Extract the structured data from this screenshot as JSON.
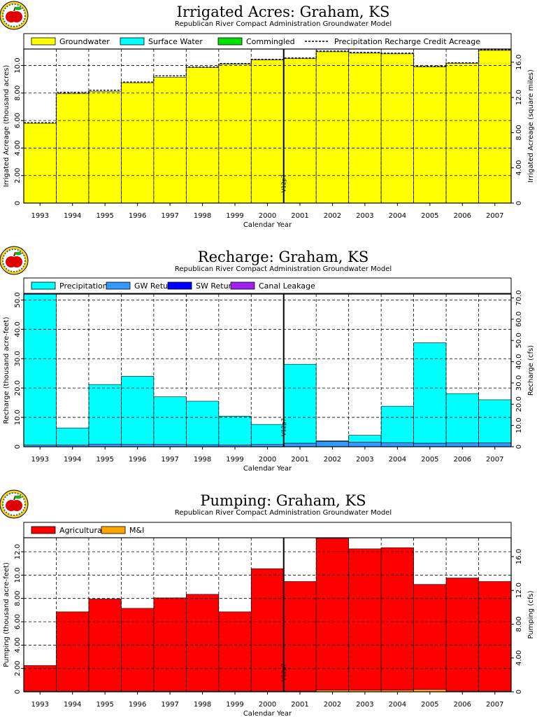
{
  "chart_data": [
    {
      "type": "bar",
      "title": "Irrigated  Acres:  Graham,  KS",
      "subtitle": "Republican  River  Compact  Administration  Groundwater  Model",
      "xlabel": "Calendar  Year",
      "ylabel": "Irrigated  Acreage  (thousand  acres)",
      "ylabel_right": "Irrigated  Acreage  (square  miles)",
      "categories": [
        "1993",
        "1994",
        "1995",
        "1996",
        "1997",
        "1998",
        "1999",
        "2000",
        "2001",
        "2002",
        "2003",
        "2004",
        "2005",
        "2006",
        "2007"
      ],
      "ylim": [
        0,
        11.2
      ],
      "yticks": [
        {
          "value": 2.0,
          "label": "2.00"
        },
        {
          "value": 4.0,
          "label": "4.00"
        },
        {
          "value": 6.0,
          "label": "6.00"
        },
        {
          "value": 8.0,
          "label": "8.00"
        },
        {
          "value": 10.0,
          "label": "10.0"
        }
      ],
      "right_ticks": [
        {
          "value": 0,
          "label": "0"
        },
        {
          "value": 2.56,
          "label": "4.00"
        },
        {
          "value": 5.12,
          "label": "8.00"
        },
        {
          "value": 7.68,
          "label": "12.0"
        },
        {
          "value": 10.24,
          "label": "16.0"
        }
      ],
      "series": [
        {
          "name": "Groundwater",
          "color": "#ffff00",
          "legend_kind": "box",
          "values": [
            5.8,
            7.95,
            8.1,
            8.75,
            9.15,
            9.85,
            10.1,
            10.4,
            10.5,
            11.0,
            10.9,
            10.85,
            9.9,
            10.15,
            11.1
          ]
        },
        {
          "name": "Surface  Water",
          "color": "#00ffff",
          "legend_kind": "box",
          "values": [
            0,
            0,
            0,
            0,
            0,
            0,
            0,
            0,
            0,
            0,
            0,
            0,
            0,
            0,
            0
          ]
        },
        {
          "name": "Commingled",
          "color": "#00e000",
          "legend_kind": "box",
          "values": [
            0,
            0,
            0,
            0,
            0,
            0,
            0,
            0,
            0,
            0,
            0,
            0,
            0,
            0,
            0
          ]
        }
      ],
      "reference_line": {
        "name": "Precipitation  Recharge  Credit  Acreage",
        "style": "dashed",
        "values": [
          5.85,
          8.05,
          8.2,
          8.8,
          9.25,
          9.9,
          10.15,
          10.45,
          10.55,
          11.05,
          10.95,
          10.9,
          9.95,
          10.2,
          11.15
        ]
      },
      "marker": {
        "label": "V12p7",
        "at_index": 8
      },
      "legend_position": "top",
      "grid": true
    },
    {
      "type": "bar",
      "title": "Recharge:  Graham,  KS",
      "subtitle": "Republican  River  Compact  Administration  Groundwater  Model",
      "xlabel": "Calendar  Year",
      "ylabel": "Recharge  (thousand  acre-feet)",
      "ylabel_right": "Recharge  (cfs)",
      "categories": [
        "1993",
        "1994",
        "1995",
        "1996",
        "1997",
        "1998",
        "1999",
        "2000",
        "2001",
        "2002",
        "2003",
        "2004",
        "2005",
        "2006",
        "2007"
      ],
      "ylim": [
        0,
        52
      ],
      "yticks": [
        {
          "value": 10,
          "label": "10.0"
        },
        {
          "value": 20,
          "label": "20.0"
        },
        {
          "value": 30,
          "label": "30.0"
        },
        {
          "value": 40,
          "label": "40.0"
        },
        {
          "value": 50,
          "label": "50.0"
        }
      ],
      "right_ticks": [
        {
          "value": 0,
          "label": "0"
        },
        {
          "value": 7.24,
          "label": "10.0"
        },
        {
          "value": 14.48,
          "label": "20.0"
        },
        {
          "value": 21.72,
          "label": "30.0"
        },
        {
          "value": 28.96,
          "label": "40.0"
        },
        {
          "value": 36.2,
          "label": "50.0"
        },
        {
          "value": 43.44,
          "label": "60.0"
        },
        {
          "value": 50.68,
          "label": "70.0"
        }
      ],
      "series": [
        {
          "name": "GW  Returns",
          "color": "#3399ff",
          "legend_kind": "box",
          "values": [
            0.6,
            0.6,
            0.9,
            0.8,
            0.8,
            0.7,
            0.6,
            0.8,
            1.2,
            1.8,
            1.6,
            1.4,
            1.2,
            1.3,
            1.3
          ]
        },
        {
          "name": "SW  Returns",
          "color": "#0000ff",
          "legend_kind": "box",
          "values": [
            0,
            0,
            0,
            0,
            0,
            0,
            0,
            0,
            0,
            0,
            0,
            0,
            0,
            0,
            0
          ]
        },
        {
          "name": "Canal  Leakage",
          "color": "#a020f0",
          "legend_kind": "box",
          "values": [
            0,
            0,
            0,
            0,
            0,
            0,
            0,
            0,
            0,
            0,
            0,
            0,
            0,
            0,
            0
          ]
        },
        {
          "name": "Precipitation",
          "color": "#00ffff",
          "legend_kind": "box",
          "values": [
            51.6,
            5.8,
            20.3,
            23.2,
            16.2,
            14.8,
            9.8,
            6.8,
            26.9,
            0.2,
            2.3,
            12.4,
            34.2,
            16.8,
            14.7
          ]
        }
      ],
      "marker": {
        "label": "V12p7",
        "at_index": 8
      },
      "legend_position": "top",
      "grid": true
    },
    {
      "type": "bar",
      "title": "Pumping:  Graham,  KS",
      "subtitle": "Republican  River  Compact  Administration  Groundwater  Model",
      "xlabel": "Calendar  Year",
      "ylabel": "Pumping  (thousand  acre-feet)",
      "ylabel_right": "Pumping  (cfs)",
      "categories": [
        "1993",
        "1994",
        "1995",
        "1996",
        "1997",
        "1998",
        "1999",
        "2000",
        "2001",
        "2002",
        "2003",
        "2004",
        "2005",
        "2006",
        "2007"
      ],
      "ylim": [
        0,
        13.2
      ],
      "yticks": [
        {
          "value": 2.0,
          "label": "2.00"
        },
        {
          "value": 4.0,
          "label": "4.00"
        },
        {
          "value": 6.0,
          "label": "6.00"
        },
        {
          "value": 8.0,
          "label": "8.00"
        },
        {
          "value": 10.0,
          "label": "10.0"
        },
        {
          "value": 12.0,
          "label": "12.0"
        }
      ],
      "right_ticks": [
        {
          "value": 0,
          "label": "0"
        },
        {
          "value": 2.896,
          "label": "4.00"
        },
        {
          "value": 5.792,
          "label": "8.00"
        },
        {
          "value": 8.688,
          "label": "12.0"
        },
        {
          "value": 11.584,
          "label": "16.0"
        }
      ],
      "series": [
        {
          "name": "M&I",
          "color": "#ffa500",
          "legend_kind": "box",
          "values": [
            0.05,
            0.05,
            0.05,
            0.05,
            0.05,
            0.05,
            0.05,
            0.05,
            0.05,
            0.15,
            0.15,
            0.15,
            0.2,
            0.05,
            0.05
          ]
        },
        {
          "name": "Agricultural",
          "color": "#ff0000",
          "legend_kind": "box",
          "values": [
            2.2,
            6.8,
            7.9,
            7.1,
            8.0,
            8.3,
            6.8,
            10.5,
            9.4,
            13.0,
            12.1,
            12.2,
            9.0,
            9.7,
            9.4
          ]
        }
      ],
      "marker": {
        "label": "V12p7",
        "at_index": 8
      },
      "legend_position": "top",
      "grid": true
    }
  ]
}
